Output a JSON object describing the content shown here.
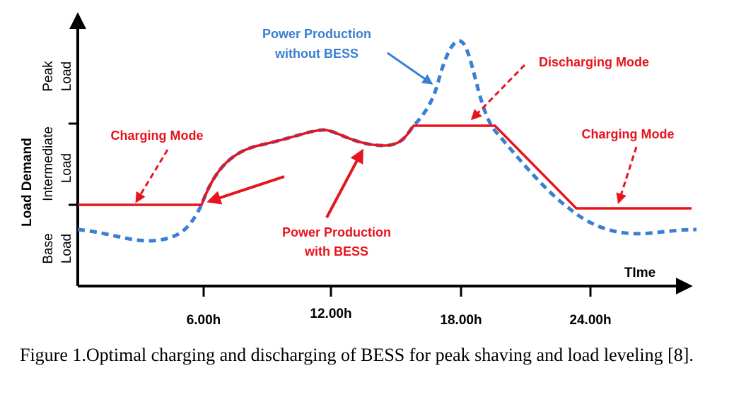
{
  "y_axis": {
    "title": "Load Demand",
    "bands": [
      {
        "line1": "Peak",
        "line2": "Load"
      },
      {
        "line1": "Intermediate",
        "line2": "Load"
      },
      {
        "line1": "Base",
        "line2": "Load"
      }
    ]
  },
  "x_axis": {
    "title": "TIme",
    "ticks": [
      "6.00h",
      "12.00h",
      "18.00h",
      "24.00h"
    ]
  },
  "annotations": {
    "power_without": {
      "line1": "Power Production",
      "line2": "without BESS"
    },
    "discharging": "Discharging Mode",
    "charging_left": "Charging Mode",
    "charging_right": "Charging Mode",
    "power_with": {
      "line1": "Power Production",
      "line2": "with BESS"
    }
  },
  "colors": {
    "axis": "#000000",
    "with_bess": "#e8141c",
    "without_bess": "#3a7fd0"
  },
  "caption": "Figure 1.Optimal charging and discharging of BESS for peak shaving and load leveling [8]."
}
